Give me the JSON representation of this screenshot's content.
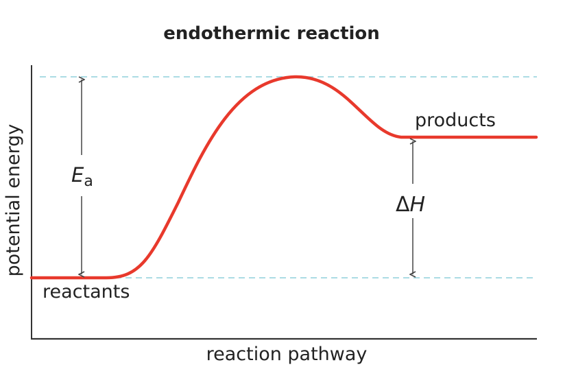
{
  "title": "endothermic reaction",
  "axes": {
    "x_label": "reaction pathway",
    "y_label": "potential energy"
  },
  "labels": {
    "reactants": "reactants",
    "products": "products",
    "activation_energy_symbol": "E",
    "activation_energy_subscript": "a",
    "enthalpy_delta": "Δ",
    "enthalpy_symbol": "H"
  },
  "colors": {
    "curve": "#e8392c",
    "reference_lines": "#8fd0dc",
    "axes": "#333333",
    "arrows": "#444444"
  }
}
